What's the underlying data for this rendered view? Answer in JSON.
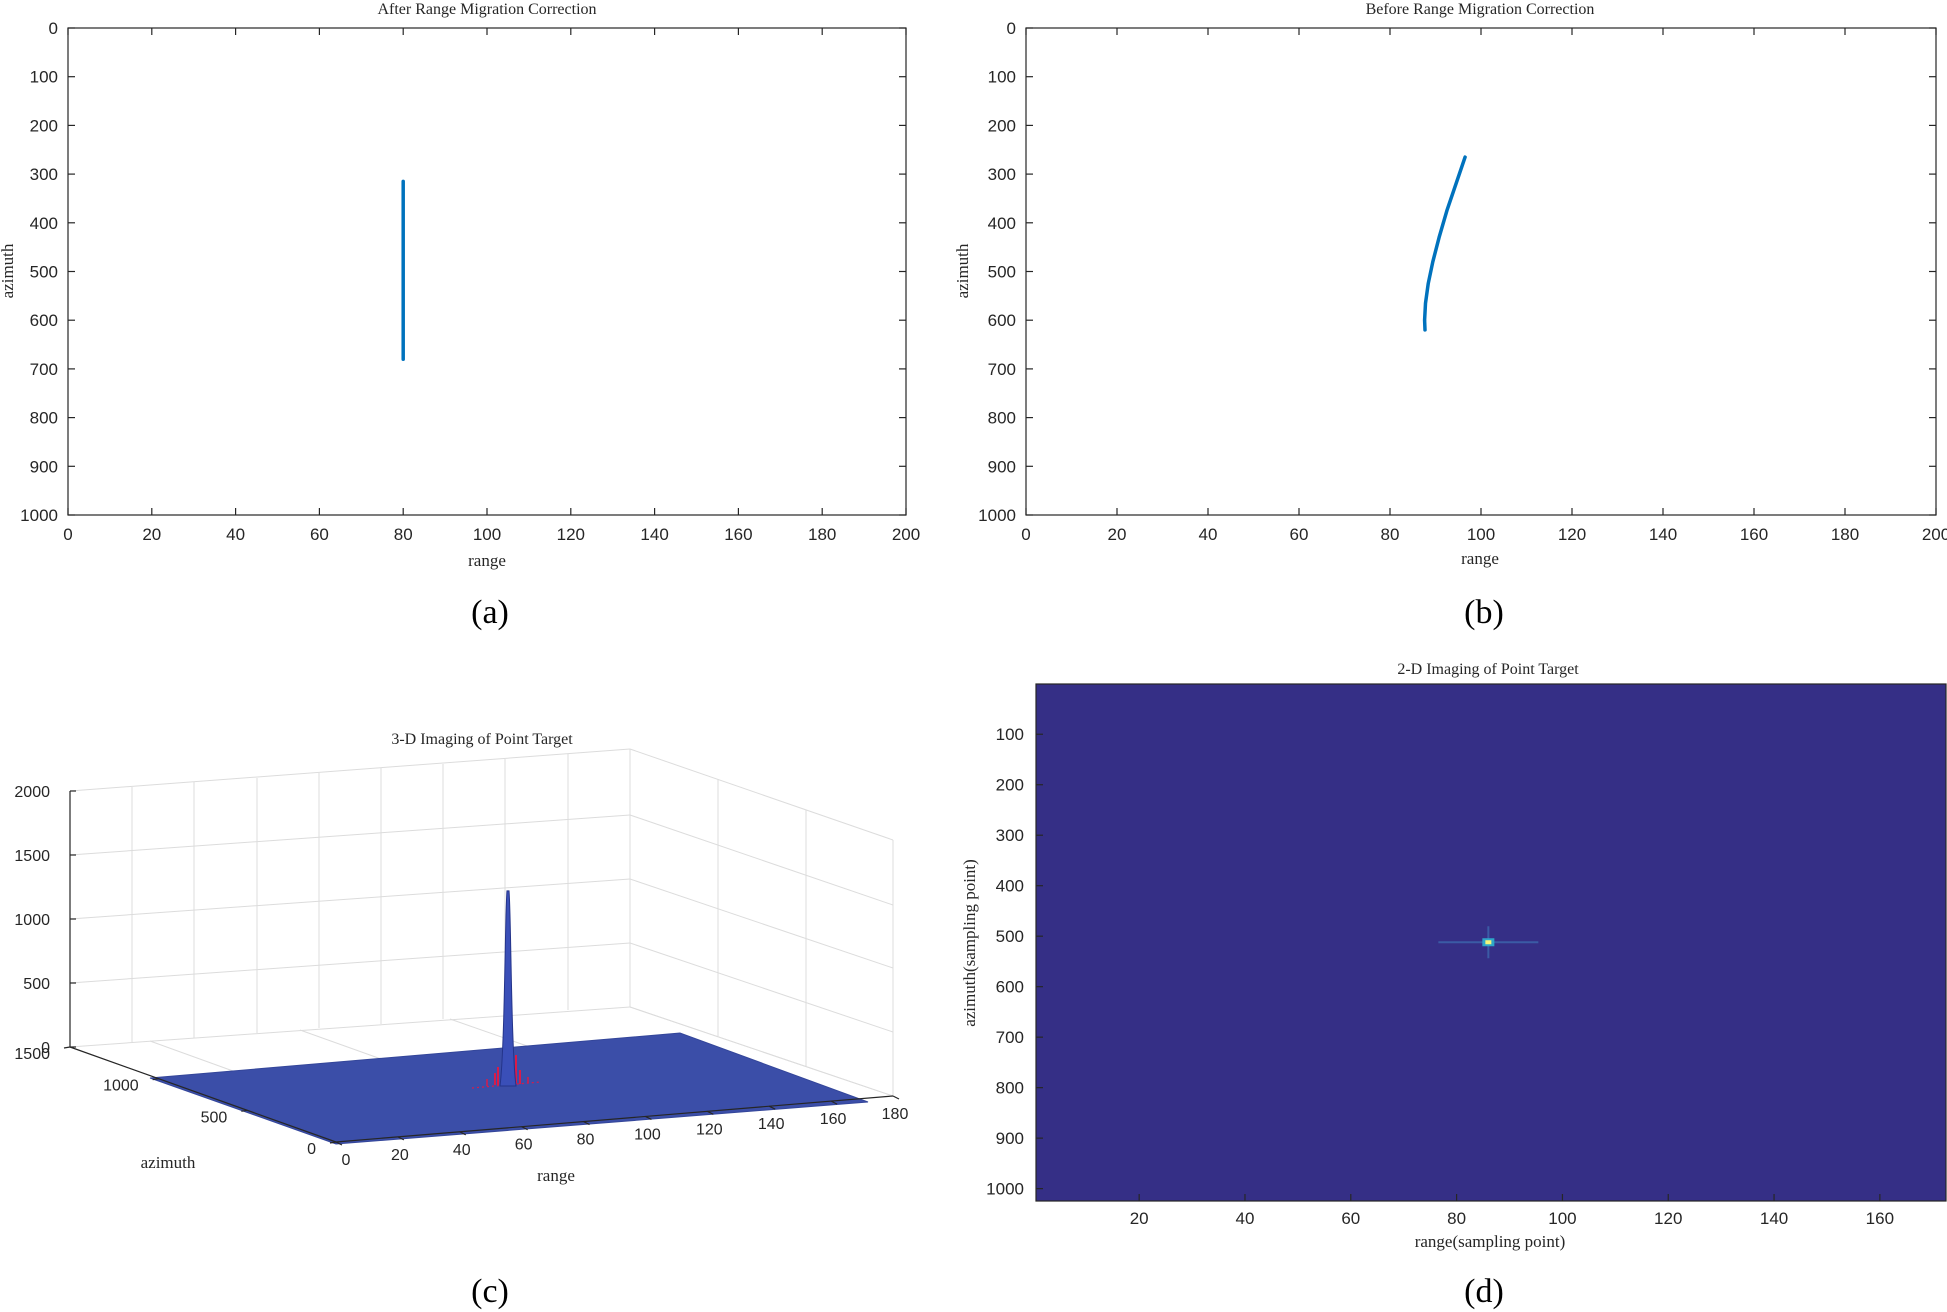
{
  "chart_data": [
    {
      "panel": "a",
      "caption": "(a)",
      "type": "line",
      "title": "After Range Migration Correction",
      "xlabel": "range",
      "ylabel": "azimuth",
      "xlim": [
        0,
        200
      ],
      "ylim": [
        0,
        1000
      ],
      "y_reversed": true,
      "x_ticks": [
        0,
        20,
        40,
        60,
        80,
        100,
        120,
        140,
        160,
        180,
        200
      ],
      "y_ticks": [
        0,
        100,
        200,
        300,
        400,
        500,
        600,
        700,
        800,
        900,
        1000
      ],
      "color": "#0072BD",
      "series": [
        {
          "x": [
            80,
            80
          ],
          "y": [
            315,
            680
          ]
        }
      ]
    },
    {
      "panel": "b",
      "caption": "(b)",
      "type": "line",
      "title": "Before Range Migration Correction",
      "xlabel": "range",
      "ylabel": "azimuth",
      "xlim": [
        0,
        200
      ],
      "ylim": [
        0,
        1000
      ],
      "y_reversed": true,
      "x_ticks": [
        0,
        20,
        40,
        60,
        80,
        100,
        120,
        140,
        160,
        180,
        200
      ],
      "y_ticks": [
        0,
        100,
        200,
        300,
        400,
        500,
        600,
        700,
        800,
        900,
        1000
      ],
      "color": "#0072BD",
      "series": [
        {
          "x": [
            96.5,
            94.5,
            92.5,
            90.8,
            89.4,
            88.4,
            87.8,
            87.6,
            87.7
          ],
          "y": [
            265,
            320,
            375,
            430,
            480,
            525,
            565,
            600,
            620
          ]
        }
      ]
    },
    {
      "panel": "c",
      "caption": "(c)",
      "type": "surface",
      "title": "3-D Imaging of Point Target",
      "xlabel": "range",
      "ylabel": "azimuth",
      "zlabel": "",
      "range_ticks": [
        0,
        20,
        40,
        60,
        80,
        100,
        120,
        140,
        160,
        180
      ],
      "azimuth_ticks": [
        0,
        500,
        1000,
        1500
      ],
      "z_ticks": [
        0,
        500,
        1000,
        1500,
        2000
      ],
      "zlim": [
        0,
        2000
      ],
      "peak": {
        "range": 86,
        "azimuth": 512,
        "value": 1220
      },
      "surface_color": "#3b4ea8",
      "sidelobe_color": "#d81b4a"
    },
    {
      "panel": "d",
      "caption": "(d)",
      "type": "heatmap",
      "title": "2-D Imaging of Point Target",
      "xlabel": "range(sampling point)",
      "ylabel": "azimuth(sampling point)",
      "xlim": [
        0.5,
        172.5
      ],
      "ylim": [
        0.5,
        1024.5
      ],
      "y_reversed": true,
      "x_ticks": [
        20,
        40,
        60,
        80,
        100,
        120,
        140,
        160
      ],
      "y_ticks": [
        100,
        200,
        300,
        400,
        500,
        600,
        700,
        800,
        900,
        1000
      ],
      "background_color": "#352f86",
      "peak": {
        "range": 86,
        "azimuth": 512
      }
    }
  ]
}
